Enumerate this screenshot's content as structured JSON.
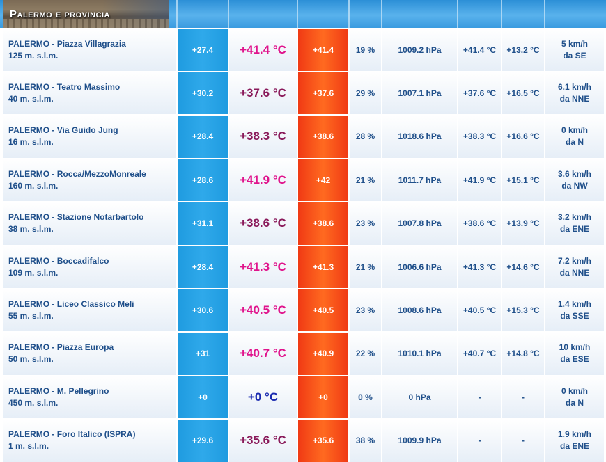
{
  "header": {
    "title": "Palermo e provincia"
  },
  "colors": {
    "current_temp_pink": "#e0148c",
    "current_temp_purple": "#8a1a5a",
    "current_temp_blue": "#1a2bb0"
  },
  "stations": [
    {
      "name": "PALERMO - Piazza Villagrazia",
      "altitude": "125 m. s.l.m.",
      "min": "+27.4",
      "current": "+41.4 °C",
      "current_color": "#e0148c",
      "max": "+41.4",
      "humidity": "19 %",
      "pressure": "1009.2 hPa",
      "temp2": "+41.4 °C",
      "temp3": "+13.2 °C",
      "wind_speed": "5 km/h",
      "wind_dir": "da SE"
    },
    {
      "name": "PALERMO - Teatro Massimo",
      "altitude": "40 m. s.l.m.",
      "min": "+30.2",
      "current": "+37.6 °C",
      "current_color": "#8a1a5a",
      "max": "+37.6",
      "humidity": "29 %",
      "pressure": "1007.1 hPa",
      "temp2": "+37.6 °C",
      "temp3": "+16.5 °C",
      "wind_speed": "6.1 km/h",
      "wind_dir": "da NNE"
    },
    {
      "name": "PALERMO - Via Guido Jung",
      "altitude": "16 m. s.l.m.",
      "min": "+28.4",
      "current": "+38.3 °C",
      "current_color": "#8a1a5a",
      "max": "+38.6",
      "humidity": "28 %",
      "pressure": "1018.6 hPa",
      "temp2": "+38.3 °C",
      "temp3": "+16.6 °C",
      "wind_speed": "0 km/h",
      "wind_dir": "da N"
    },
    {
      "name": "PALERMO - Rocca/MezzoMonreale",
      "altitude": "160 m. s.l.m.",
      "min": "+28.6",
      "current": "+41.9 °C",
      "current_color": "#e0148c",
      "max": "+42",
      "humidity": "21 %",
      "pressure": "1011.7 hPa",
      "temp2": "+41.9 °C",
      "temp3": "+15.1 °C",
      "wind_speed": "3.6 km/h",
      "wind_dir": "da NW"
    },
    {
      "name": "PALERMO - Stazione Notarbartolo",
      "altitude": "38 m. s.l.m.",
      "min": "+31.1",
      "current": "+38.6 °C",
      "current_color": "#8a1a5a",
      "max": "+38.6",
      "humidity": "23 %",
      "pressure": "1007.8 hPa",
      "temp2": "+38.6 °C",
      "temp3": "+13.9 °C",
      "wind_speed": "3.2 km/h",
      "wind_dir": "da ENE"
    },
    {
      "name": "PALERMO - Boccadifalco",
      "altitude": "109 m. s.l.m.",
      "min": "+28.4",
      "current": "+41.3 °C",
      "current_color": "#e0148c",
      "max": "+41.3",
      "humidity": "21 %",
      "pressure": "1006.6 hPa",
      "temp2": "+41.3 °C",
      "temp3": "+14.6 °C",
      "wind_speed": "7.2 km/h",
      "wind_dir": "da NNE"
    },
    {
      "name": "PALERMO - Liceo Classico Meli",
      "altitude": "55 m. s.l.m.",
      "min": "+30.6",
      "current": "+40.5 °C",
      "current_color": "#e0148c",
      "max": "+40.5",
      "humidity": "23 %",
      "pressure": "1008.6 hPa",
      "temp2": "+40.5 °C",
      "temp3": "+15.3 °C",
      "wind_speed": "1.4 km/h",
      "wind_dir": "da SSE"
    },
    {
      "name": "PALERMO - Piazza Europa",
      "altitude": "50 m. s.l.m.",
      "min": "+31",
      "current": "+40.7 °C",
      "current_color": "#e0148c",
      "max": "+40.9",
      "humidity": "22 %",
      "pressure": "1010.1 hPa",
      "temp2": "+40.7 °C",
      "temp3": "+14.8 °C",
      "wind_speed": "10 km/h",
      "wind_dir": "da ESE"
    },
    {
      "name": "PALERMO - M. Pellegrino",
      "altitude": "450 m. s.l.m.",
      "min": "+0",
      "current": "+0 °C",
      "current_color": "#1a2bb0",
      "max": "+0",
      "humidity": "0 %",
      "pressure": "0 hPa",
      "temp2": "-",
      "temp3": "-",
      "wind_speed": "0 km/h",
      "wind_dir": "da N"
    },
    {
      "name": "PALERMO - Foro Italico (ISPRA)",
      "altitude": "1 m. s.l.m.",
      "min": "+29.6",
      "current": "+35.6 °C",
      "current_color": "#8a1a5a",
      "max": "+35.6",
      "humidity": "38 %",
      "pressure": "1009.9 hPa",
      "temp2": "-",
      "temp3": "-",
      "wind_speed": "1.9 km/h",
      "wind_dir": "da ENE"
    }
  ]
}
